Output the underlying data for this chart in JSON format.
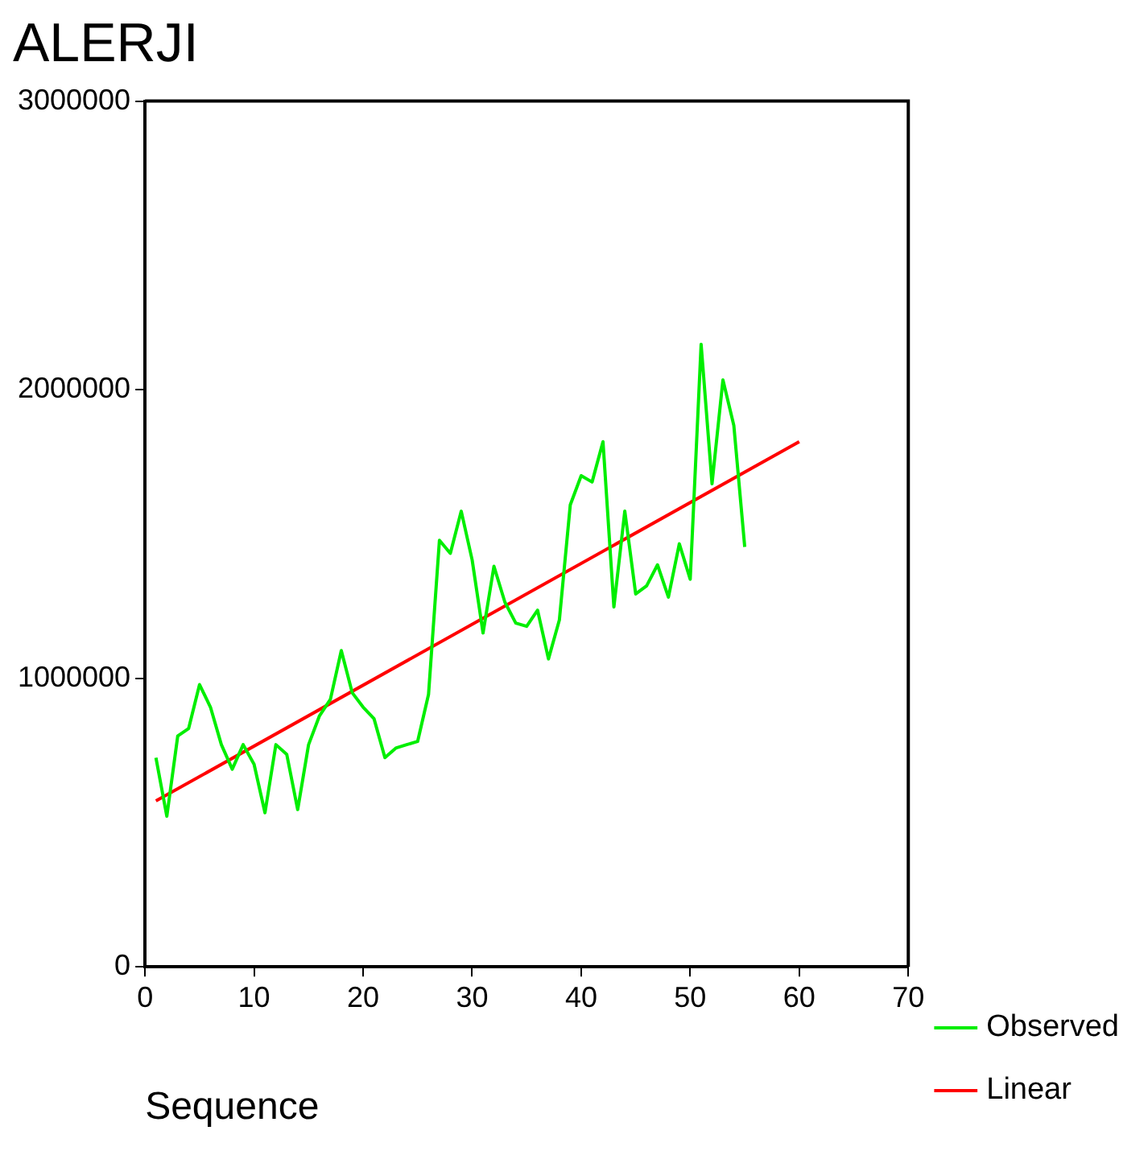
{
  "chart_data": {
    "type": "line",
    "title": "ALERJI",
    "xlabel": "Sequence",
    "xlim": [
      0,
      70
    ],
    "xticks": [
      0,
      10,
      20,
      30,
      40,
      50,
      60,
      70
    ],
    "ylim": [
      0,
      3000000
    ],
    "yticks": [
      0,
      1000000,
      2000000,
      3000000
    ],
    "grid": false,
    "legend": "bottom right",
    "marker": "none",
    "line_style": "solid",
    "series": [
      {
        "name": "Observed",
        "color": "#00ee00",
        "x": [
          1,
          2,
          3,
          4,
          5,
          6,
          7,
          8,
          9,
          10,
          11,
          12,
          13,
          14,
          15,
          16,
          17,
          18,
          19,
          20,
          21,
          22,
          23,
          24,
          25,
          26,
          27,
          28,
          29,
          30,
          31,
          32,
          33,
          34,
          35,
          36,
          37,
          38,
          39,
          40,
          41,
          42,
          43,
          44,
          45,
          46,
          47,
          48,
          49,
          50,
          51,
          52,
          53,
          54,
          55
        ],
        "values": [
          725000,
          522000,
          800000,
          826000,
          978000,
          900000,
          770000,
          685000,
          770000,
          702000,
          534000,
          770000,
          736000,
          545000,
          770000,
          870000,
          927000,
          1096000,
          950000,
          900000,
          860000,
          725000,
          758000,
          770000,
          781000,
          944000,
          1478000,
          1433000,
          1579000,
          1410000,
          1157000,
          1388000,
          1264000,
          1191000,
          1180000,
          1236000,
          1067000,
          1202000,
          1601000,
          1702000,
          1680000,
          1820000,
          1247000,
          1579000,
          1292000,
          1320000,
          1393000,
          1281000,
          1466000,
          1343000,
          2157000,
          1674000,
          2034000,
          1876000,
          1455000
        ]
      },
      {
        "name": "Linear",
        "type": "line",
        "color": "#ff0000",
        "x": [
          1,
          60
        ],
        "values": [
          575000,
          1820000
        ]
      }
    ]
  }
}
